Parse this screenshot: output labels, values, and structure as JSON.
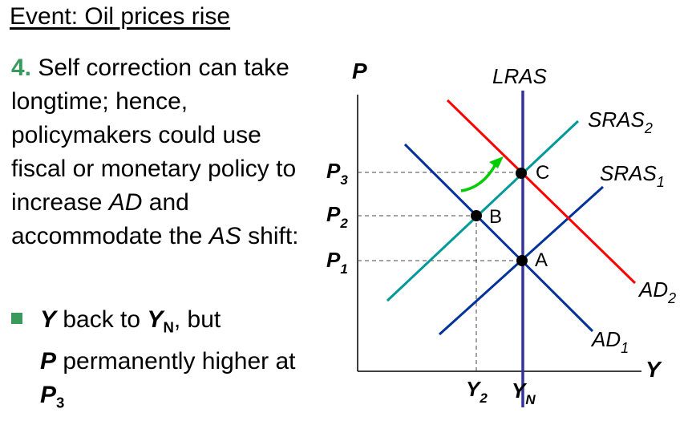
{
  "event": {
    "title": "Event: Oil prices rise"
  },
  "point": {
    "number": "4.",
    "part1": " Self correction can take longtime; hence, policymakers could use fiscal or monetary policy to increase ",
    "ad": "AD",
    "part2": " and accommodate the ",
    "as": "AS",
    "part3": " shift:"
  },
  "bullet": {
    "y": "Y",
    "t1": " back to ",
    "yn_main": "Y",
    "yn_sub": "N",
    "t2": ", but ",
    "p": "P",
    "t3": " permanently higher at ",
    "p3_main": "P",
    "p3_sub": "3"
  },
  "diagram": {
    "axis_y_label": "P",
    "axis_x_label": "Y",
    "curves": {
      "lras": "LRAS",
      "sras2_main": "SRAS",
      "sras2_sub": "2",
      "sras1_main": "SRAS",
      "sras1_sub": "1",
      "ad2_main": "AD",
      "ad2_sub": "2",
      "ad1_main": "AD",
      "ad1_sub": "1"
    },
    "price_labels": [
      {
        "main": "P",
        "sub": "3"
      },
      {
        "main": "P",
        "sub": "2"
      },
      {
        "main": "P",
        "sub": "1"
      }
    ],
    "output_labels": [
      {
        "main": "Y",
        "sub": "2"
      },
      {
        "main": "Y",
        "sub": "N"
      }
    ],
    "points": {
      "a": "A",
      "b": "B",
      "c": "C"
    },
    "colors": {
      "lras": "#333399",
      "ad": "#003399",
      "sras": "#009999",
      "ad2": "#ff0000",
      "arrow": "#00cc00",
      "text_accent": "#3a9a5c"
    }
  }
}
